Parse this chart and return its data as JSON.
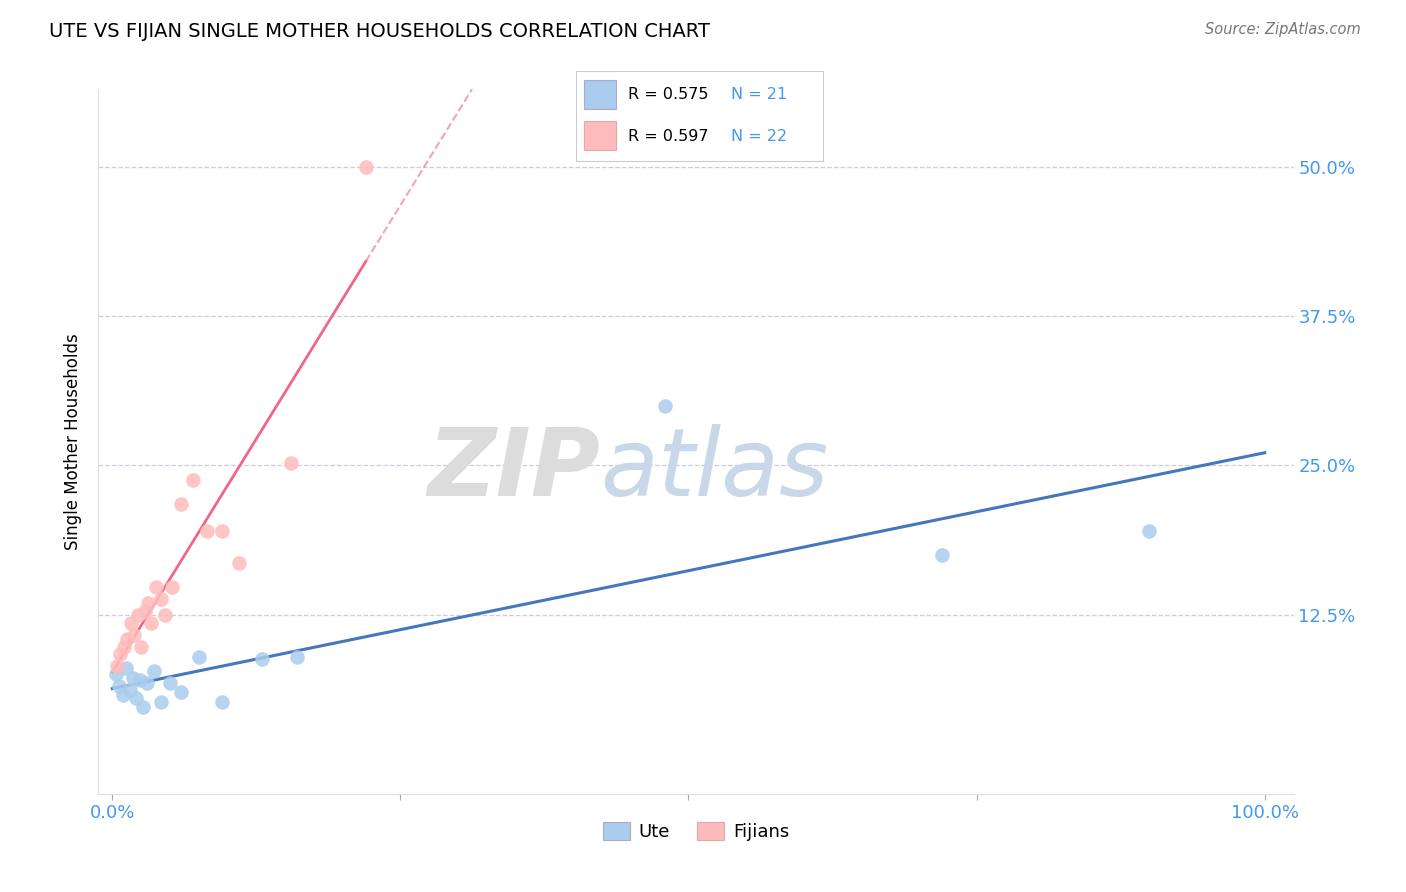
{
  "title": "UTE VS FIJIAN SINGLE MOTHER HOUSEHOLDS CORRELATION CHART",
  "source": "Source: ZipAtlas.com",
  "ylabel": "Single Mother Households",
  "watermark_text": "ZIPatlas",
  "legend_blue_r": "R = 0.575",
  "legend_blue_n": "N = 21",
  "legend_pink_r": "R = 0.597",
  "legend_pink_n": "N = 22",
  "blue_scatter_color": "#AACCEE",
  "pink_scatter_color": "#FFBBBB",
  "blue_line_color": "#4477BB",
  "pink_line_color": "#EE6688",
  "axis_tick_color": "#4499EE",
  "legend_label_blue": "Ute",
  "legend_label_pink": "Fijians",
  "grid_color": "#CCCCDD",
  "watermark_color": "#D8E4F0",
  "xlim": [
    -0.012,
    1.025
  ],
  "ylim": [
    -0.025,
    0.565
  ],
  "ytick_positions": [
    0.125,
    0.25,
    0.375,
    0.5
  ],
  "ytick_labels": [
    "12.5%",
    "25.0%",
    "37.5%",
    "50.0%"
  ],
  "xtick_positions": [
    0.0,
    0.25,
    0.5,
    0.75,
    1.0
  ],
  "xtick_labels": [
    "0.0%",
    "",
    "",
    "",
    "100.0%"
  ],
  "ute_x": [
    0.003,
    0.006,
    0.009,
    0.012,
    0.015,
    0.018,
    0.021,
    0.024,
    0.027,
    0.03,
    0.036,
    0.042,
    0.05,
    0.06,
    0.075,
    0.095,
    0.13,
    0.16,
    0.48,
    0.72,
    0.9
  ],
  "ute_y": [
    0.075,
    0.065,
    0.058,
    0.08,
    0.062,
    0.072,
    0.055,
    0.07,
    0.048,
    0.068,
    0.078,
    0.052,
    0.068,
    0.06,
    0.09,
    0.052,
    0.088,
    0.09,
    0.3,
    0.175,
    0.195
  ],
  "fijian_x": [
    0.004,
    0.007,
    0.01,
    0.013,
    0.016,
    0.019,
    0.022,
    0.025,
    0.028,
    0.031,
    0.034,
    0.038,
    0.042,
    0.046,
    0.052,
    0.06,
    0.07,
    0.082,
    0.095,
    0.11,
    0.155,
    0.22
  ],
  "fijian_y": [
    0.082,
    0.092,
    0.098,
    0.105,
    0.118,
    0.108,
    0.125,
    0.098,
    0.128,
    0.135,
    0.118,
    0.148,
    0.138,
    0.125,
    0.148,
    0.218,
    0.238,
    0.195,
    0.195,
    0.168,
    0.252,
    0.5
  ]
}
